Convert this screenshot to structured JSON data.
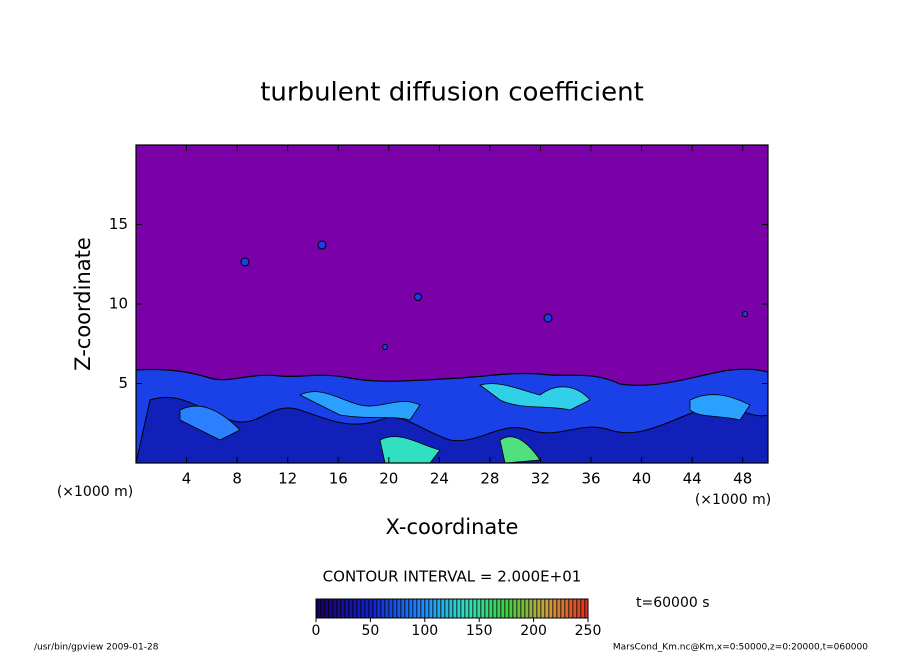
{
  "chart_data": {
    "type": "contour",
    "title": "turbulent diffusion coefficient",
    "x_label": "X-coordinate",
    "y_label": "Z-coordinate",
    "x_unit": "(×1000 m)",
    "y_unit": "(×1000 m)",
    "xlim": [
      0,
      50
    ],
    "xticks": [
      4,
      8,
      12,
      16,
      20,
      24,
      28,
      32,
      36,
      40,
      44,
      48
    ],
    "ylim": [
      0,
      20
    ],
    "yticks": [
      5,
      10,
      15
    ],
    "contour_interval": "CONTOUR INTERVAL = 2.000E+01",
    "colorbar": {
      "lim": [
        0,
        250
      ],
      "ticks": [
        0,
        50,
        100,
        150,
        200,
        250
      ]
    },
    "time_label": "t=60000 s",
    "footer_left": "/usr/bin/gpview  2009-01-28",
    "footer_right": "MarsCond_Km.nc@Km,x=0:50000,z=0:20000,t=060000"
  }
}
